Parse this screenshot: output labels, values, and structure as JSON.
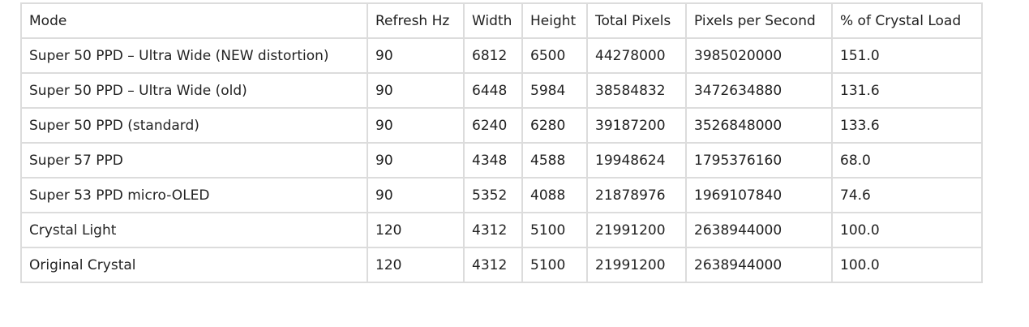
{
  "table": {
    "headers": [
      "Mode",
      "Refresh Hz",
      "Width",
      "Height",
      "Total Pixels",
      "Pixels per Second",
      "% of Crystal Load"
    ],
    "rows": [
      [
        "Super 50 PPD – Ultra Wide (NEW distortion)",
        "90",
        "6812",
        "6500",
        "44278000",
        "3985020000",
        "151.0"
      ],
      [
        "Super 50 PPD – Ultra Wide (old)",
        "90",
        "6448",
        "5984",
        "38584832",
        "3472634880",
        "131.6"
      ],
      [
        "Super 50 PPD (standard)",
        "90",
        "6240",
        "6280",
        "39187200",
        "3526848000",
        "133.6"
      ],
      [
        "Super 57 PPD",
        "90",
        "4348",
        "4588",
        "19948624",
        "1795376160",
        "68.0"
      ],
      [
        "Super 53 PPD micro-OLED",
        "90",
        "5352",
        "4088",
        "21878976",
        "1969107840",
        "74.6"
      ],
      [
        "Crystal Light",
        "120",
        "4312",
        "5100",
        "21991200",
        "2638944000",
        "100.0"
      ],
      [
        "Original Crystal",
        "120",
        "4312",
        "5100",
        "21991200",
        "2638944000",
        "100.0"
      ]
    ]
  }
}
